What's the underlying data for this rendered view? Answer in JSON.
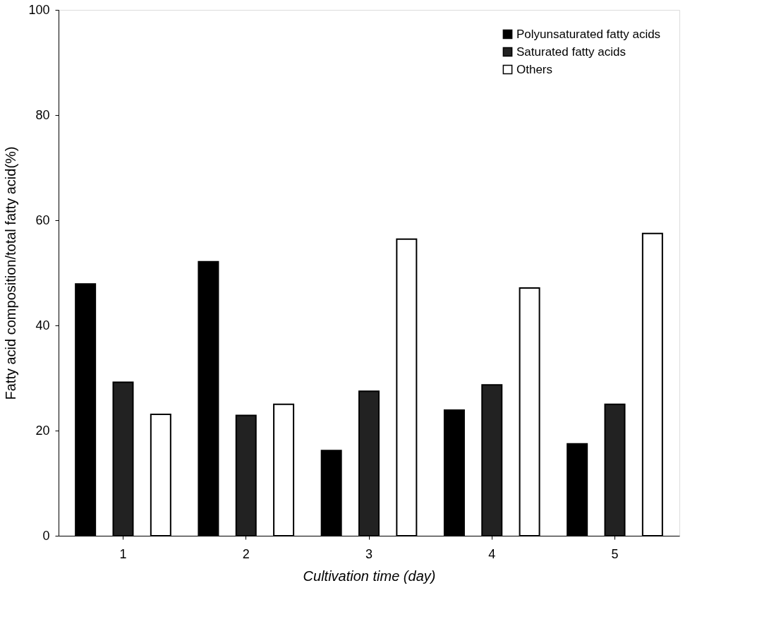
{
  "chart_data": {
    "type": "bar",
    "xlabel": "Cultivation time (day)",
    "ylabel": "Fatty acid composition/total fatty acid(%)",
    "categories": [
      "1",
      "2",
      "3",
      "4",
      "5"
    ],
    "series": [
      {
        "name": "Polyunsaturated fatty acids",
        "color": "#000000",
        "values": [
          47.9,
          52.1,
          16.2,
          23.9,
          17.5
        ]
      },
      {
        "name": "Saturated fatty acids",
        "color": "#222222",
        "values": [
          29.2,
          22.9,
          27.5,
          28.7,
          25.0
        ]
      },
      {
        "name": "Others",
        "color": "#ffffff",
        "values": [
          23.1,
          25.0,
          56.4,
          47.1,
          57.5
        ]
      }
    ],
    "ylim": [
      0,
      100
    ],
    "yticks": [
      0,
      20,
      40,
      60,
      80,
      100
    ],
    "grid": false,
    "legend": "top right"
  }
}
